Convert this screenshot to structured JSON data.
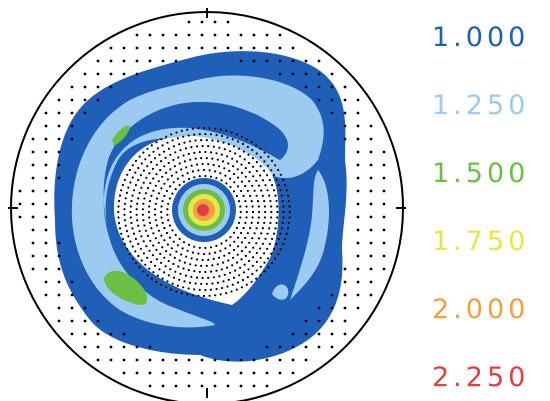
{
  "chart_data": {
    "type": "heatmap",
    "projection": "polar",
    "title": "",
    "legend": {
      "placement": "right",
      "levels": [
        {
          "label": "1.000",
          "value": 1.0,
          "color": "#1f5fb8"
        },
        {
          "label": "1.250",
          "value": 1.25,
          "color": "#9ccaf0"
        },
        {
          "label": "1.500",
          "value": 1.5,
          "color": "#6cbf45"
        },
        {
          "label": "1.750",
          "value": 1.75,
          "color": "#e4e84a"
        },
        {
          "label": "2.000",
          "value": 2.0,
          "color": "#f0a040"
        },
        {
          "label": "2.250",
          "value": 2.25,
          "color": "#e04040"
        }
      ]
    },
    "sampling_points": "dots",
    "grid": false
  }
}
